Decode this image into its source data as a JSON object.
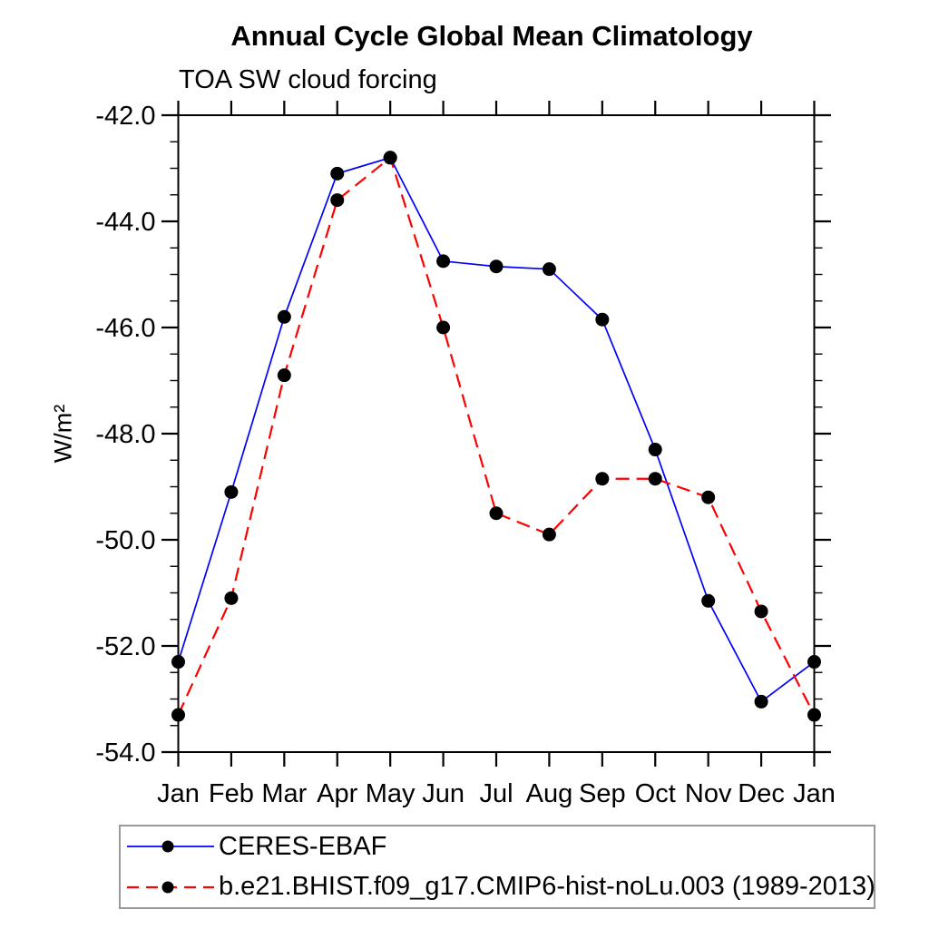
{
  "header": {
    "title": "Annual Cycle Global Mean Climatology",
    "subtitle": "TOA SW cloud forcing"
  },
  "chart_data": {
    "type": "line",
    "title": "Annual Cycle Global Mean Climatology",
    "subtitle": "TOA SW cloud forcing",
    "ylabel": "W/m²",
    "xlabel": "",
    "categories": [
      "Jan",
      "Feb",
      "Mar",
      "Apr",
      "May",
      "Jun",
      "Jul",
      "Aug",
      "Sep",
      "Oct",
      "Nov",
      "Dec",
      "Jan"
    ],
    "series": [
      {
        "name": "CERES-EBAF",
        "color": "#0000ff",
        "line_style": "solid",
        "marker": "black-dot",
        "values": [
          -52.3,
          -49.1,
          -45.8,
          -43.1,
          -42.8,
          -44.75,
          -44.85,
          -44.9,
          -45.85,
          -48.3,
          -51.15,
          -53.05,
          -52.3
        ]
      },
      {
        "name": "b.e21.BHIST.f09_g17.CMIP6-hist-noLu.003 (1989-2013)",
        "color": "#ff0000",
        "line_style": "dashed",
        "marker": "black-dot",
        "values": [
          -53.3,
          -51.1,
          -46.9,
          -43.6,
          -42.8,
          -46.0,
          -49.5,
          -49.9,
          -48.85,
          -48.85,
          -49.2,
          -51.35,
          -53.3
        ]
      }
    ],
    "ylim": [
      -54.0,
      -42.0
    ],
    "ytick_major_step": 2.0,
    "ytick_minor_step": 0.5,
    "ytick_labels": [
      "-42.0",
      "-44.0",
      "-46.0",
      "-48.0",
      "-50.0",
      "-52.0",
      "-54.0"
    ],
    "grid": false,
    "legend_position": "bottom",
    "axis_color": "#000000",
    "marker_color": "#000000"
  }
}
